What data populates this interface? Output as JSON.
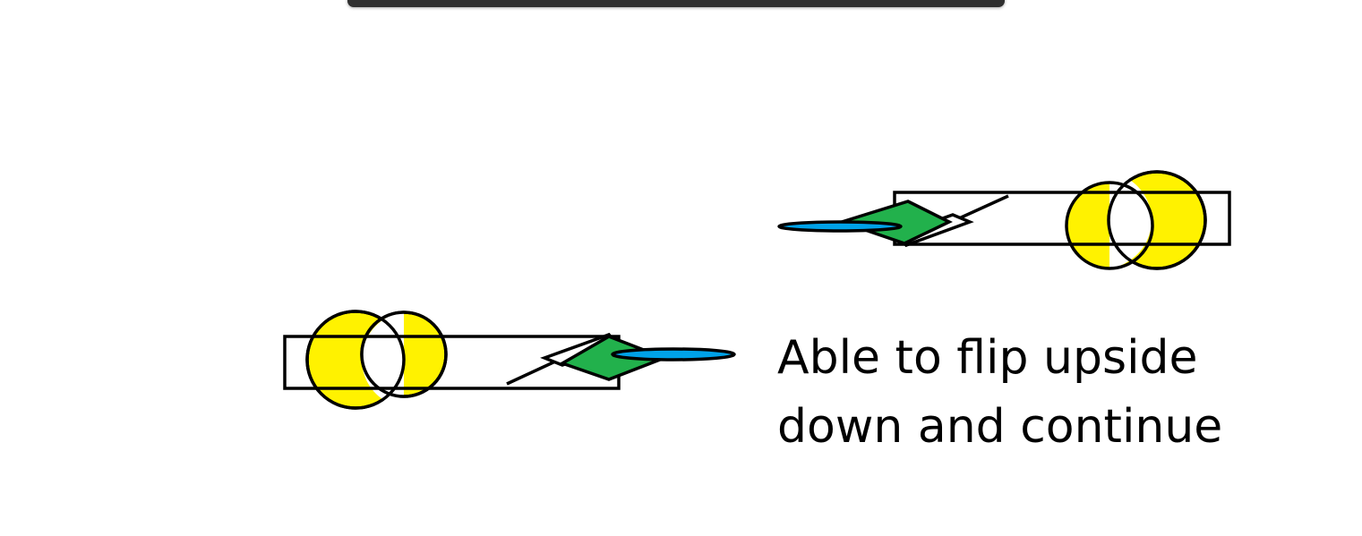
{
  "caption": {
    "line1": "Able to flip upside",
    "line2": "down and continue"
  },
  "colors": {
    "circle_fill": "#fff200",
    "wing_fill": "#22b14c",
    "propeller_fill": "#00a2e8",
    "outline": "#000000",
    "toolbar": "#2f2f2f",
    "toolbar_accent": "#f0b000"
  }
}
